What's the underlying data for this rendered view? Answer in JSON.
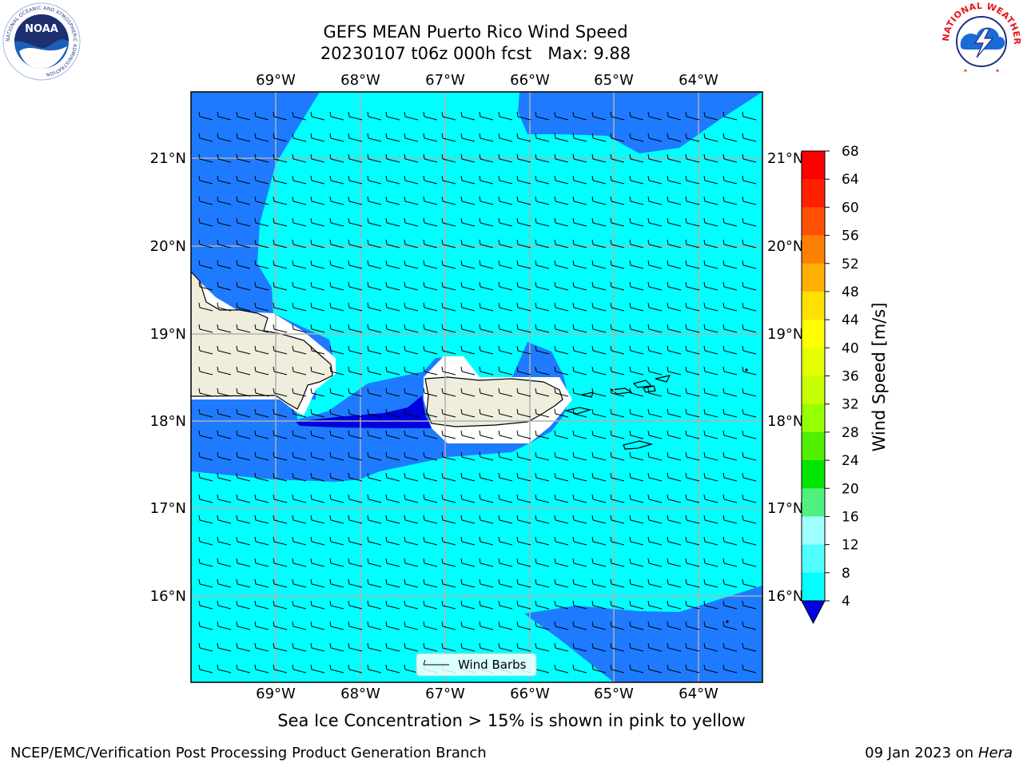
{
  "header": {
    "title_line1": "GEFS MEAN Puerto Rico Wind Speed",
    "title_line2": "20230107 t06z 000h fcst   Max: 9.88"
  },
  "logos": {
    "left": {
      "icon": "noaa-logo",
      "ring_text": "NATIONAL OCEANIC AND ATMOSPHERIC ADMINISTRATION",
      "center_text": "NOAA"
    },
    "right": {
      "icon": "nws-logo",
      "ring_text": "NATIONAL WEATHER SERVICE"
    }
  },
  "map": {
    "lon_labels": [
      "69°W",
      "68°W",
      "67°W",
      "66°W",
      "65°W",
      "64°W"
    ],
    "lat_labels": [
      "21°N",
      "20°N",
      "19°N",
      "18°N",
      "17°N",
      "16°N"
    ],
    "legend_label": "Wind Barbs",
    "colors": {
      "ocean_light": "#00ffff",
      "ocean_mid": "#1e7bff",
      "ocean_dark": "#0000e0",
      "land": "#efeddc",
      "grid": "#b0b0b0"
    }
  },
  "colorbar": {
    "label": "Wind Speed [m/s]",
    "ticks": [
      "68",
      "64",
      "60",
      "56",
      "52",
      "48",
      "44",
      "40",
      "36",
      "32",
      "28",
      "24",
      "20",
      "16",
      "12",
      "8",
      "4"
    ],
    "colors_top_to_bottom": [
      "#ff0000",
      "#ff2000",
      "#ff5000",
      "#ff8000",
      "#ffb000",
      "#ffe000",
      "#ffff00",
      "#e6ff00",
      "#c8ff00",
      "#96ff00",
      "#50f000",
      "#00e400",
      "#50f080",
      "#a0ffff",
      "#50ffff",
      "#00ffff",
      "#1e7bff"
    ],
    "extend_color": "#0000e0"
  },
  "footer": {
    "caption": "Sea Ice Concentration > 15% is shown in pink to yellow",
    "left": "NCEP/EMC/Verification Post Processing Product Generation Branch",
    "right_date": "09 Jan 2023 on ",
    "right_host": "Hera"
  }
}
